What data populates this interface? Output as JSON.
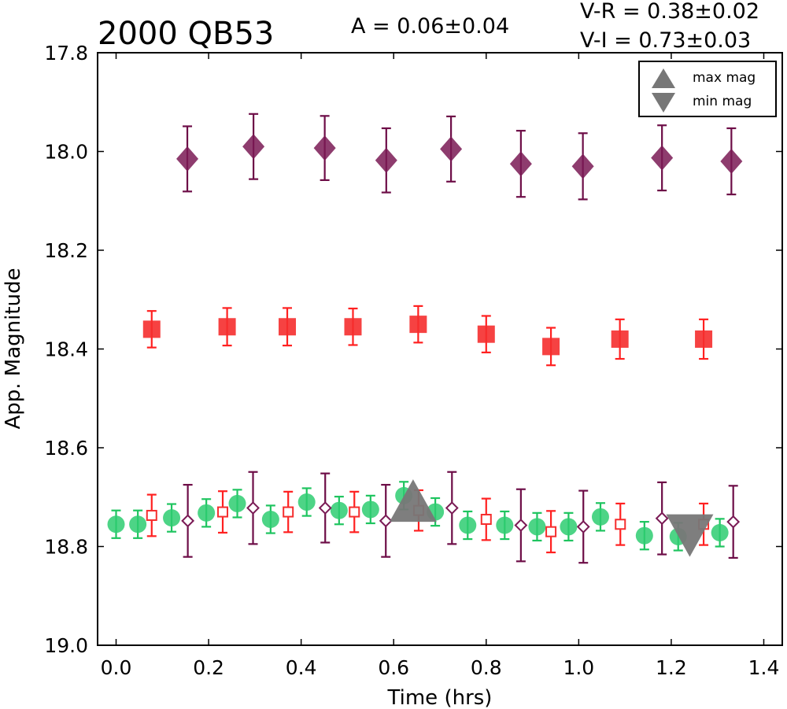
{
  "chart_data": {
    "type": "scatter",
    "title": "2000 QB53",
    "annotations": {
      "amplitude": "A  = 0.06±0.04",
      "v_r": "V-R = 0.38±0.02",
      "v_i": "V-I  = 0.73±0.03"
    },
    "xlabel": "Time (hrs)",
    "ylabel": "App. Magnitude",
    "xlim": [
      -0.04,
      1.44
    ],
    "ylim": [
      19.0,
      17.8
    ],
    "y_inverted": true,
    "xticks": [
      "0.0",
      "0.2",
      "0.4",
      "0.6",
      "0.8",
      "1.0",
      "1.2",
      "1.4"
    ],
    "xtick_values": [
      0.0,
      0.2,
      0.4,
      0.6,
      0.8,
      1.0,
      1.2,
      1.4
    ],
    "yticks": [
      "17.8",
      "18.0",
      "18.2",
      "18.4",
      "18.6",
      "18.8",
      "19.0"
    ],
    "ytick_values": [
      17.8,
      18.0,
      18.2,
      18.4,
      18.6,
      18.8,
      19.0
    ],
    "grid": false,
    "legend_position": "top-right",
    "series": [
      {
        "marker": "diamond-filled",
        "color": "#7a1a55",
        "errorbar_color": "#6d0d47",
        "x": [
          0.154,
          0.297,
          0.451,
          0.584,
          0.724,
          0.875,
          1.009,
          1.18,
          1.33
        ],
        "y": [
          18.015,
          17.99,
          17.993,
          18.018,
          17.995,
          18.025,
          18.03,
          18.013,
          18.02
        ],
        "yerr": [
          0.066,
          0.066,
          0.065,
          0.065,
          0.066,
          0.067,
          0.067,
          0.066,
          0.067
        ]
      },
      {
        "marker": "square-filled",
        "color": "#f52e2e",
        "errorbar_color": "#ff2020",
        "x": [
          0.077,
          0.2,
          0.24,
          0.37,
          0.512,
          0.653,
          0.8,
          0.94,
          1.089,
          1.27
        ],
        "y": [
          18.36,
          null,
          18.355,
          18.355,
          18.355,
          18.35,
          18.37,
          18.395,
          18.38,
          18.38
        ],
        "yerr": [
          0.037,
          null,
          0.038,
          0.038,
          0.037,
          0.037,
          0.037,
          0.038,
          0.04,
          0.04
        ]
      },
      {
        "marker": "circle-filled",
        "color": "#2ecc71",
        "errorbar_color": "#1ec45f",
        "x": [
          0.0,
          0.047,
          0.12,
          0.195,
          0.262,
          0.334,
          0.412,
          0.482,
          0.55,
          0.622,
          0.69,
          0.76,
          0.84,
          0.91,
          0.978,
          1.047,
          1.142,
          1.215,
          1.305
        ],
        "y": [
          18.755,
          18.755,
          18.742,
          18.732,
          18.713,
          18.745,
          18.71,
          18.727,
          18.725,
          18.697,
          18.73,
          18.757,
          18.757,
          18.76,
          18.76,
          18.74,
          18.778,
          18.78,
          18.772
        ],
        "yerr": [
          0.028,
          0.028,
          0.028,
          0.028,
          0.028,
          0.028,
          0.028,
          0.028,
          0.028,
          0.028,
          0.028,
          0.028,
          0.028,
          0.028,
          0.028,
          0.028,
          0.028,
          0.028,
          0.028
        ]
      },
      {
        "marker": "square-open",
        "color": "#f52e2e",
        "errorbar_color": "#ff2020",
        "x": [
          0.077,
          0.2305,
          0.372,
          0.515,
          0.654,
          0.8,
          0.94,
          1.09,
          1.27
        ],
        "y": [
          18.737,
          18.73,
          18.73,
          18.73,
          18.727,
          18.745,
          18.77,
          18.755,
          18.755
        ],
        "yerr": [
          0.042,
          0.042,
          0.041,
          0.041,
          0.041,
          0.042,
          0.042,
          0.042,
          0.042
        ]
      },
      {
        "marker": "diamond-open",
        "color": "#7a1a55",
        "errorbar_color": "#6d0d47",
        "x": [
          0.155,
          0.296,
          0.452,
          0.583,
          0.726,
          0.875,
          1.01,
          1.18,
          1.334
        ],
        "y": [
          18.748,
          18.722,
          18.722,
          18.748,
          18.722,
          18.757,
          18.76,
          18.743,
          18.75
        ],
        "yerr": [
          0.073,
          0.073,
          0.07,
          0.073,
          0.073,
          0.073,
          0.073,
          0.073,
          0.073
        ]
      }
    ],
    "special_markers": [
      {
        "name": "max mag",
        "marker": "triangle-up",
        "color": "#777777",
        "x": 0.642,
        "y": 18.715
      },
      {
        "name": "min mag",
        "marker": "triangle-down",
        "color": "#777777",
        "x": 1.24,
        "y": 18.77
      }
    ],
    "legend": [
      {
        "label": "max mag",
        "marker": "triangle-up",
        "color": "#777777"
      },
      {
        "label": "min mag",
        "marker": "triangle-down",
        "color": "#777777"
      }
    ]
  }
}
